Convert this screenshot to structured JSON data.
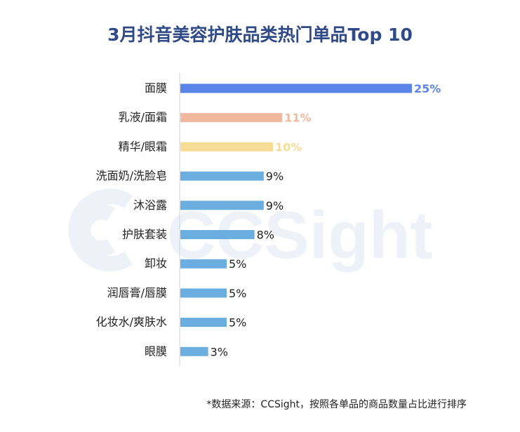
{
  "title": "3月抖音美容护肤品类热门单品Top 10",
  "watermark": "CCSight",
  "footnote": "*数据来源：CCSight，按照各单品的商品数量占比进行排序",
  "colors": {
    "title": "#2f4a86",
    "watermark": "#eef2f8",
    "axis": "#cfd6e2"
  },
  "chart_data": {
    "type": "bar",
    "orientation": "horizontal",
    "unit": "%",
    "categories": [
      "面膜",
      "乳液/面霜",
      "精华/眼霜",
      "洗面奶/洗脸皂",
      "沐浴露",
      "护肤套装",
      "卸妆",
      "润唇膏/唇膜",
      "化妆水/爽肤水",
      "眼膜"
    ],
    "values": [
      25,
      11,
      10,
      9,
      9,
      8,
      5,
      5,
      5,
      3
    ],
    "labels": [
      "25%",
      "11%",
      "10%",
      "9%",
      "9%",
      "8%",
      "5%",
      "5%",
      "5%",
      "3%"
    ],
    "bar_colors": [
      "#5b84e8",
      "#f2b89d",
      "#f7dc95",
      "#6aaee0",
      "#6aaee0",
      "#6aaee0",
      "#6aaee0",
      "#6aaee0",
      "#6aaee0",
      "#6aaee0"
    ],
    "label_colors": [
      "#5b84e8",
      "#f2b89d",
      "#f7dc95",
      "#222222",
      "#222222",
      "#222222",
      "#222222",
      "#222222",
      "#222222",
      "#222222"
    ],
    "xlim": [
      0,
      25
    ]
  }
}
